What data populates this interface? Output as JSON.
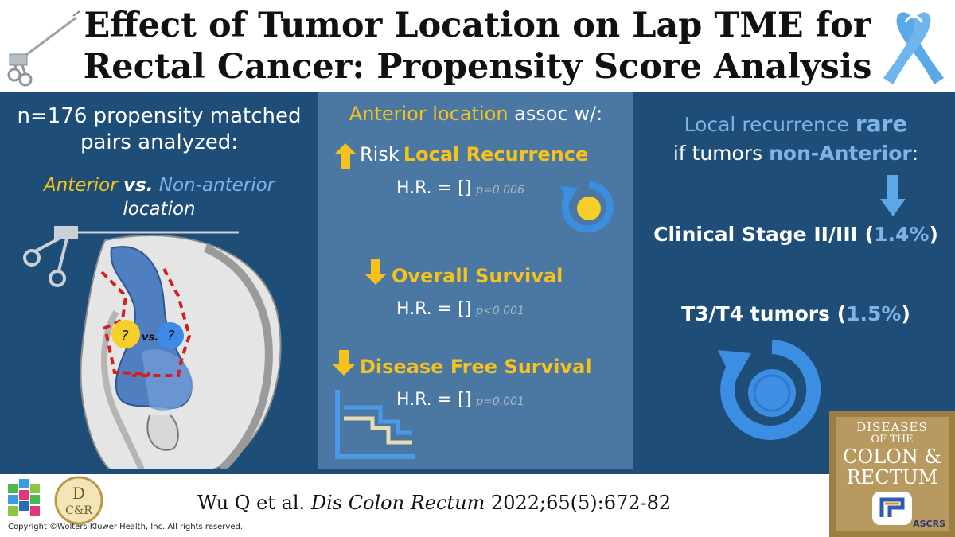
{
  "title": {
    "line1": "Effect of Tumor Location on Lap TME for",
    "line2": "Rectal Cancer: Propensity Score Analysis"
  },
  "left": {
    "line1": "n=176 propensity matched",
    "line2": "pairs analyzed:",
    "anterior": "Anterior",
    "vs": "vs.",
    "non_anterior": "Non-anterior",
    "location": "location",
    "q1": "?",
    "vs_small": "vs.",
    "q2": "?"
  },
  "middle": {
    "head_colored": "Anterior location",
    "head_rest": "assoc w/:",
    "items": [
      {
        "prefix": "Risk",
        "label": "Local Recurrence",
        "hr": "H.R. = []",
        "p": "p=0.006"
      },
      {
        "prefix": "",
        "label": "Overall Survival",
        "hr": "H.R. = []",
        "p": "p<0.001"
      },
      {
        "prefix": "",
        "label": "Disease Free Survival",
        "hr": "H.R. = []",
        "p": "p=0.001"
      }
    ]
  },
  "right": {
    "l1_a": "Local recurrence",
    "l1_b": "rare",
    "l2_a": "if tumors",
    "l2_b": "non-Anterior",
    "l2_c": ":",
    "stage_label": "Clinical Stage II/III (",
    "stage_value": "1.4%",
    "stage_close": ")",
    "t3_label": "T3/T4 tumors (",
    "t3_value": "1.5%",
    "t3_close": ")"
  },
  "footer": {
    "authors": "Wu Q et al.",
    "journal_ital": "Dis Colon Rectum",
    "ref": "2022;65(5):672-82",
    "copyright": "Copyright ©Wolters Kluwer Health, Inc. All rights reserved.",
    "dcr_d": "D",
    "dcr_cr": "C&R"
  },
  "journal_cover": {
    "l1": "DISEASES",
    "l2": "OF THE",
    "l3": "COLON &",
    "l4": "RECTUM",
    "society": "ASCRS"
  },
  "colors": {
    "band": "#1e4d78",
    "panel": "#4a78a3",
    "yellow": "#f6c21c",
    "light_blue": "#7db4e6",
    "ribbon": "#5aa8e8"
  }
}
